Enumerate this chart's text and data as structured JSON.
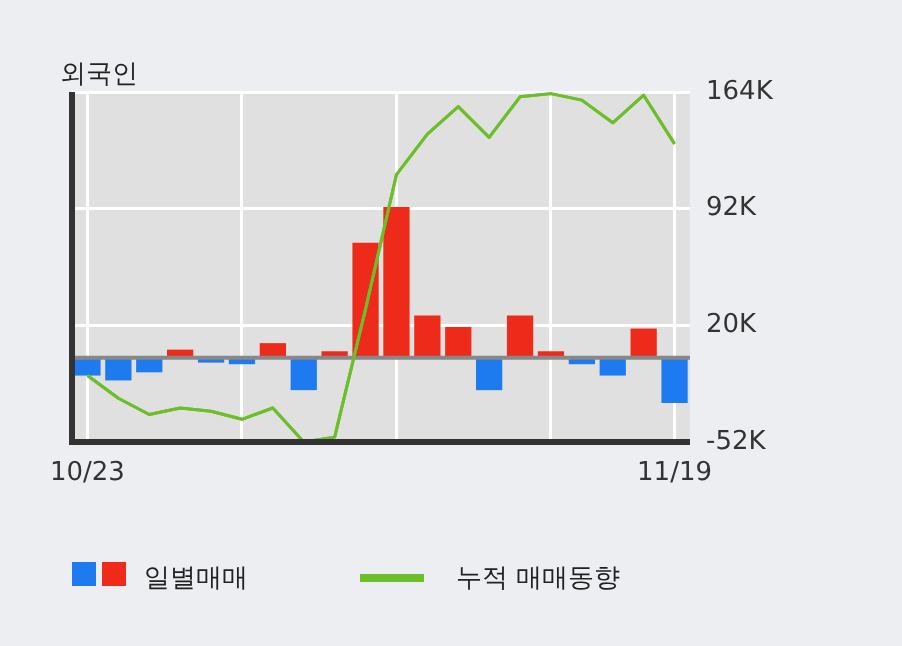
{
  "chart_data": {
    "type": "bar",
    "title": "외국인",
    "categories": [
      "10/23",
      null,
      null,
      null,
      null,
      null,
      null,
      null,
      null,
      null,
      null,
      null,
      null,
      null,
      null,
      null,
      null,
      null,
      null,
      "11/19"
    ],
    "series": [
      {
        "name": "일별매매",
        "values": [
          -11000,
          -14000,
          -9000,
          5000,
          -3000,
          -4000,
          9000,
          -20000,
          4000,
          71000,
          93000,
          26000,
          19000,
          -20000,
          26000,
          4000,
          -4000,
          -11000,
          18000,
          -28000
        ],
        "colors": [
          "#1e7bef",
          "#1e7bef",
          "#1e7bef",
          "#ee2a1a",
          "#1e7bef",
          "#1e7bef",
          "#ee2a1a",
          "#1e7bef",
          "#ee2a1a",
          "#ee2a1a",
          "#ee2a1a",
          "#ee2a1a",
          "#ee2a1a",
          "#1e7bef",
          "#ee2a1a",
          "#ee2a1a",
          "#1e7bef",
          "#1e7bef",
          "#ee2a1a",
          "#1e7bef"
        ]
      },
      {
        "name": "누적 매매동향",
        "type": "line",
        "color": "#6cbf2a",
        "values": [
          -11000,
          -25000,
          -35000,
          -31000,
          -33000,
          -38000,
          -31000,
          -52000,
          -49000,
          30000,
          113000,
          138000,
          155000,
          136000,
          161000,
          163000,
          159000,
          145000,
          162000,
          132000
        ]
      }
    ],
    "ylim": [
      -52000,
      164000
    ],
    "yticks": [
      {
        "value": -52000,
        "label": "-52K"
      },
      {
        "value": 20000,
        "label": "20K"
      },
      {
        "value": 92000,
        "label": "92K"
      },
      {
        "value": 164000,
        "label": "164K"
      }
    ],
    "grid": true,
    "legend": "bottom",
    "marker": "none",
    "ref_lines": [
      {
        "axis": "y",
        "value": 0,
        "color": "#888888"
      }
    ]
  }
}
